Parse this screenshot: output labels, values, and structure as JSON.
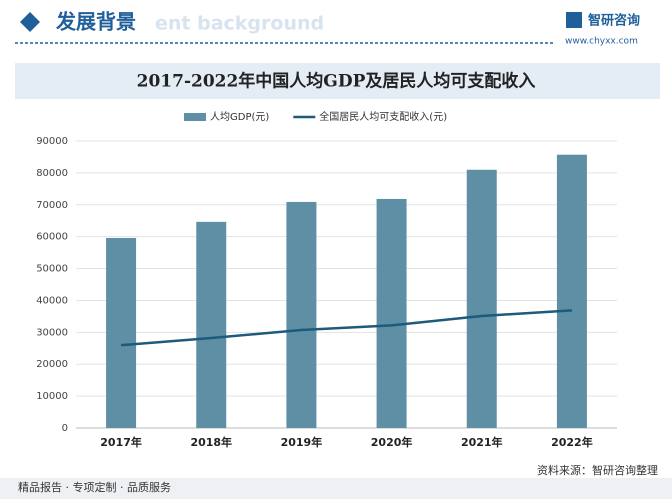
{
  "header": {
    "title": "发展背景",
    "subtitle": "ent background",
    "brand": "智研咨询",
    "url": "www.chyxx.com"
  },
  "chart_data": {
    "type": "bar",
    "title": "2017-2022年中国人均GDP及居民人均可支配收入",
    "categories": [
      "2017年",
      "2018年",
      "2019年",
      "2020年",
      "2021年",
      "2022年"
    ],
    "series": [
      {
        "name": "人均GDP(元)",
        "type": "bar",
        "color": "#5e8fa5",
        "values": [
          59592,
          64644,
          70892,
          71828,
          80976,
          85698
        ]
      },
      {
        "name": "全国居民人均可支配收入(元)",
        "type": "line",
        "color": "#1d5a7c",
        "values": [
          25974,
          28228,
          30733,
          32189,
          35128,
          36883
        ]
      }
    ],
    "ylim": [
      0,
      90000
    ],
    "yticks": [
      0,
      10000,
      20000,
      30000,
      40000,
      50000,
      60000,
      70000,
      80000,
      90000
    ],
    "grid": true
  },
  "footer": {
    "left": "精品报告 · 专项定制 · 品质服务",
    "source": "资料来源：智研咨询整理"
  }
}
